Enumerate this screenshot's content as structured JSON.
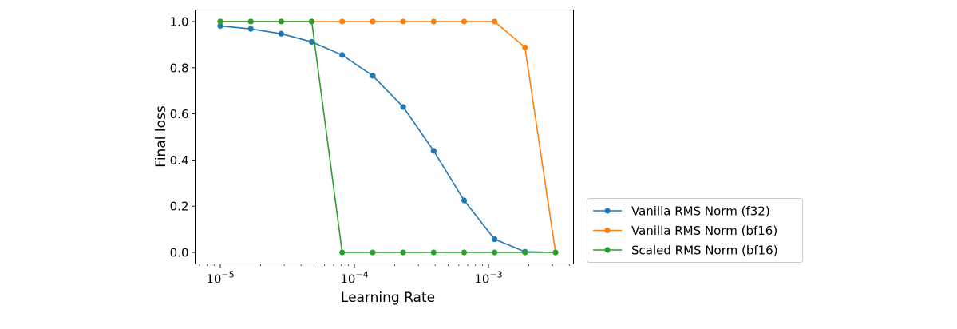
{
  "chart_data": {
    "type": "line",
    "title": "",
    "xlabel": "Learning Rate",
    "ylabel": "Final loss",
    "xscale": "log",
    "xlim": [
      6.5e-06,
      0.0043
    ],
    "ylim": [
      -0.05,
      1.05
    ],
    "x_ticks": [
      1e-05,
      0.0001,
      0.001
    ],
    "x_tick_labels": [
      {
        "base": "10",
        "exp": "−5"
      },
      {
        "base": "10",
        "exp": "−4"
      },
      {
        "base": "10",
        "exp": "−3"
      }
    ],
    "y_ticks": [
      0.0,
      0.2,
      0.4,
      0.6,
      0.8,
      1.0
    ],
    "y_tick_labels": [
      "0.0",
      "0.2",
      "0.4",
      "0.6",
      "0.8",
      "1.0"
    ],
    "grid": false,
    "legend_position": "outside-right-bottom",
    "x": [
      1e-05,
      1.69e-05,
      2.85e-05,
      4.81e-05,
      8.11e-05,
      0.000137,
      0.000231,
      0.00039,
      0.000658,
      0.00111,
      0.00187,
      0.00316
    ],
    "series": [
      {
        "name": "Vanilla RMS Norm (f32)",
        "color": "#1f77b4",
        "values": [
          0.981,
          0.968,
          0.947,
          0.912,
          0.855,
          0.765,
          0.63,
          0.44,
          0.225,
          0.057,
          0.003,
          0.0
        ]
      },
      {
        "name": "Vanilla RMS Norm (bf16)",
        "color": "#ff7f0e",
        "values": [
          1.0,
          1.0,
          1.0,
          1.0,
          1.0,
          1.0,
          1.0,
          1.0,
          1.0,
          1.0,
          0.888,
          0.0
        ]
      },
      {
        "name": "Scaled RMS Norm (bf16)",
        "color": "#2ca02c",
        "values": [
          1.0,
          1.0,
          1.0,
          1.0,
          0.0,
          0.0,
          0.0,
          0.0,
          0.0,
          0.0,
          0.0,
          0.0
        ]
      }
    ]
  }
}
